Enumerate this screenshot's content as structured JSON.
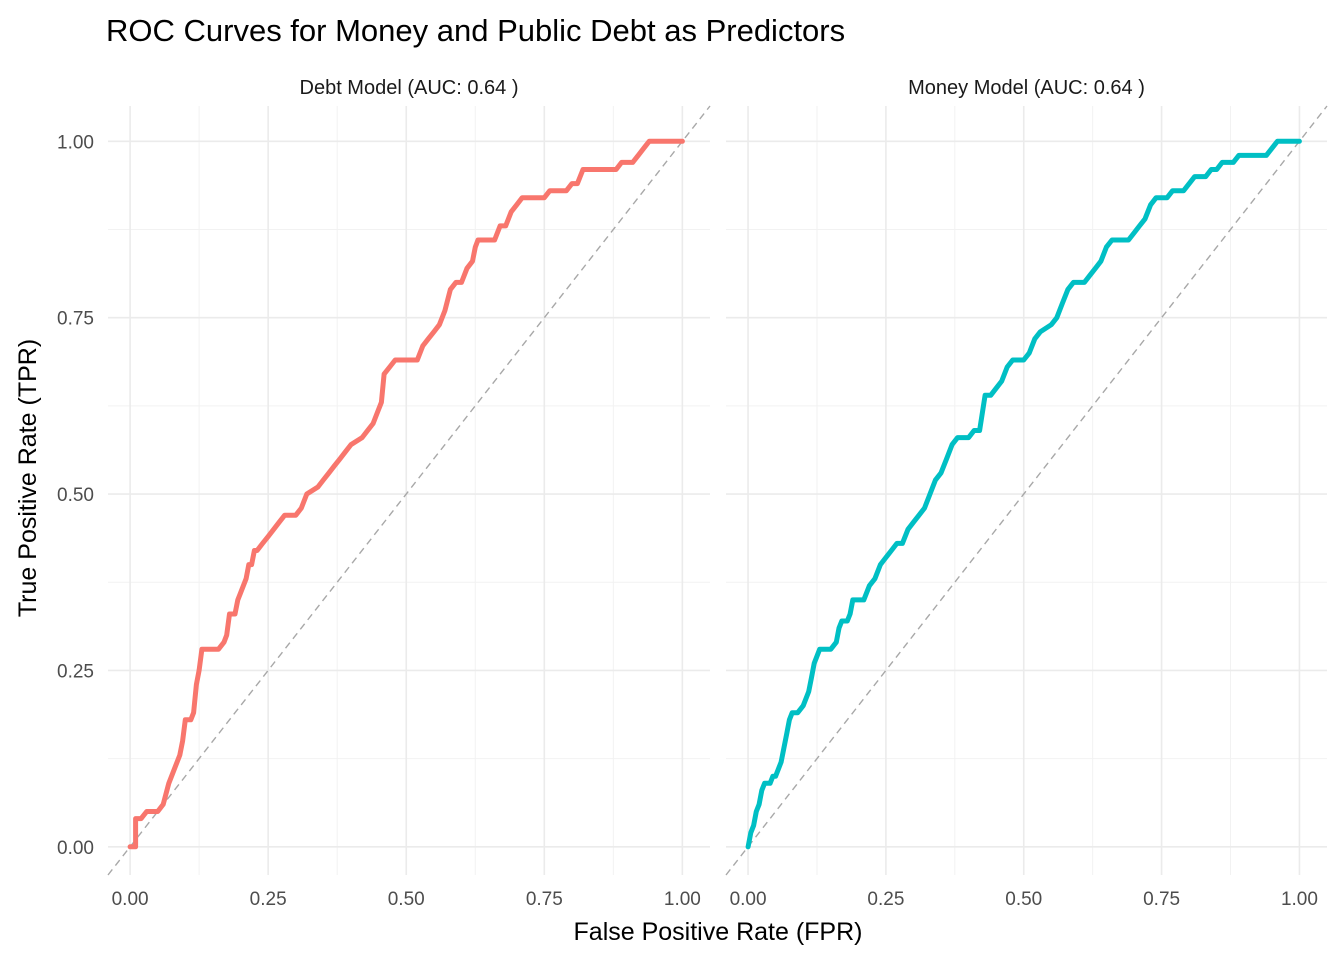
{
  "chart_data": {
    "type": "line",
    "title": "ROC Curves for Money and Public Debt as Predictors",
    "xlabel": "False Positive Rate (FPR)",
    "ylabel": "True Positive Rate (TPR)",
    "xlim": [
      -0.04,
      1.05
    ],
    "ylim": [
      -0.04,
      1.05
    ],
    "grid": true,
    "x_ticks": [
      "0.00",
      "0.25",
      "0.50",
      "0.75",
      "1.00"
    ],
    "y_ticks": [
      "0.00",
      "0.25",
      "0.50",
      "0.75",
      "1.00"
    ],
    "reference_line": "diagonal y = x (dashed)",
    "panels": [
      {
        "label": "Debt Model (AUC: 0.64 )",
        "color": "#f8766d",
        "points": [
          [
            0.0,
            0.0
          ],
          [
            0.01,
            0.0
          ],
          [
            0.01,
            0.04
          ],
          [
            0.02,
            0.04
          ],
          [
            0.03,
            0.05
          ],
          [
            0.05,
            0.05
          ],
          [
            0.06,
            0.06
          ],
          [
            0.07,
            0.09
          ],
          [
            0.08,
            0.11
          ],
          [
            0.09,
            0.13
          ],
          [
            0.095,
            0.15
          ],
          [
            0.1,
            0.18
          ],
          [
            0.11,
            0.18
          ],
          [
            0.115,
            0.19
          ],
          [
            0.12,
            0.23
          ],
          [
            0.125,
            0.25
          ],
          [
            0.13,
            0.28
          ],
          [
            0.16,
            0.28
          ],
          [
            0.17,
            0.29
          ],
          [
            0.175,
            0.3
          ],
          [
            0.18,
            0.33
          ],
          [
            0.19,
            0.33
          ],
          [
            0.195,
            0.35
          ],
          [
            0.2,
            0.36
          ],
          [
            0.21,
            0.38
          ],
          [
            0.215,
            0.4
          ],
          [
            0.22,
            0.4
          ],
          [
            0.225,
            0.42
          ],
          [
            0.23,
            0.42
          ],
          [
            0.24,
            0.43
          ],
          [
            0.25,
            0.44
          ],
          [
            0.26,
            0.45
          ],
          [
            0.27,
            0.46
          ],
          [
            0.28,
            0.47
          ],
          [
            0.3,
            0.47
          ],
          [
            0.31,
            0.48
          ],
          [
            0.32,
            0.5
          ],
          [
            0.34,
            0.51
          ],
          [
            0.35,
            0.52
          ],
          [
            0.36,
            0.53
          ],
          [
            0.37,
            0.54
          ],
          [
            0.38,
            0.55
          ],
          [
            0.39,
            0.56
          ],
          [
            0.4,
            0.57
          ],
          [
            0.42,
            0.58
          ],
          [
            0.43,
            0.59
          ],
          [
            0.44,
            0.6
          ],
          [
            0.45,
            0.62
          ],
          [
            0.455,
            0.63
          ],
          [
            0.46,
            0.67
          ],
          [
            0.47,
            0.68
          ],
          [
            0.48,
            0.69
          ],
          [
            0.52,
            0.69
          ],
          [
            0.53,
            0.71
          ],
          [
            0.54,
            0.72
          ],
          [
            0.55,
            0.73
          ],
          [
            0.56,
            0.74
          ],
          [
            0.57,
            0.76
          ],
          [
            0.58,
            0.79
          ],
          [
            0.59,
            0.8
          ],
          [
            0.6,
            0.8
          ],
          [
            0.61,
            0.82
          ],
          [
            0.62,
            0.83
          ],
          [
            0.625,
            0.85
          ],
          [
            0.63,
            0.86
          ],
          [
            0.66,
            0.86
          ],
          [
            0.67,
            0.88
          ],
          [
            0.68,
            0.88
          ],
          [
            0.69,
            0.9
          ],
          [
            0.7,
            0.91
          ],
          [
            0.71,
            0.92
          ],
          [
            0.75,
            0.92
          ],
          [
            0.76,
            0.93
          ],
          [
            0.79,
            0.93
          ],
          [
            0.8,
            0.94
          ],
          [
            0.81,
            0.94
          ],
          [
            0.82,
            0.96
          ],
          [
            0.88,
            0.96
          ],
          [
            0.89,
            0.97
          ],
          [
            0.91,
            0.97
          ],
          [
            0.92,
            0.98
          ],
          [
            0.93,
            0.99
          ],
          [
            0.94,
            1.0
          ],
          [
            1.0,
            1.0
          ]
        ]
      },
      {
        "label": "Money Model (AUC: 0.64 )",
        "color": "#00bfc4",
        "points": [
          [
            0.0,
            0.0
          ],
          [
            0.005,
            0.02
          ],
          [
            0.01,
            0.03
          ],
          [
            0.015,
            0.05
          ],
          [
            0.02,
            0.06
          ],
          [
            0.025,
            0.08
          ],
          [
            0.03,
            0.09
          ],
          [
            0.04,
            0.09
          ],
          [
            0.045,
            0.1
          ],
          [
            0.05,
            0.1
          ],
          [
            0.06,
            0.12
          ],
          [
            0.065,
            0.14
          ],
          [
            0.07,
            0.16
          ],
          [
            0.075,
            0.18
          ],
          [
            0.08,
            0.19
          ],
          [
            0.09,
            0.19
          ],
          [
            0.1,
            0.2
          ],
          [
            0.11,
            0.22
          ],
          [
            0.115,
            0.24
          ],
          [
            0.12,
            0.26
          ],
          [
            0.13,
            0.28
          ],
          [
            0.15,
            0.28
          ],
          [
            0.16,
            0.29
          ],
          [
            0.165,
            0.31
          ],
          [
            0.17,
            0.32
          ],
          [
            0.18,
            0.32
          ],
          [
            0.185,
            0.33
          ],
          [
            0.19,
            0.35
          ],
          [
            0.21,
            0.35
          ],
          [
            0.22,
            0.37
          ],
          [
            0.23,
            0.38
          ],
          [
            0.24,
            0.4
          ],
          [
            0.25,
            0.41
          ],
          [
            0.26,
            0.42
          ],
          [
            0.27,
            0.43
          ],
          [
            0.28,
            0.43
          ],
          [
            0.29,
            0.45
          ],
          [
            0.3,
            0.46
          ],
          [
            0.31,
            0.47
          ],
          [
            0.32,
            0.48
          ],
          [
            0.33,
            0.5
          ],
          [
            0.34,
            0.52
          ],
          [
            0.35,
            0.53
          ],
          [
            0.36,
            0.55
          ],
          [
            0.37,
            0.57
          ],
          [
            0.38,
            0.58
          ],
          [
            0.4,
            0.58
          ],
          [
            0.41,
            0.59
          ],
          [
            0.42,
            0.59
          ],
          [
            0.43,
            0.64
          ],
          [
            0.44,
            0.64
          ],
          [
            0.45,
            0.65
          ],
          [
            0.46,
            0.66
          ],
          [
            0.47,
            0.68
          ],
          [
            0.48,
            0.69
          ],
          [
            0.5,
            0.69
          ],
          [
            0.51,
            0.7
          ],
          [
            0.52,
            0.72
          ],
          [
            0.53,
            0.73
          ],
          [
            0.55,
            0.74
          ],
          [
            0.56,
            0.75
          ],
          [
            0.57,
            0.77
          ],
          [
            0.58,
            0.79
          ],
          [
            0.59,
            0.8
          ],
          [
            0.61,
            0.8
          ],
          [
            0.62,
            0.81
          ],
          [
            0.63,
            0.82
          ],
          [
            0.64,
            0.83
          ],
          [
            0.65,
            0.85
          ],
          [
            0.66,
            0.86
          ],
          [
            0.69,
            0.86
          ],
          [
            0.7,
            0.87
          ],
          [
            0.71,
            0.88
          ],
          [
            0.72,
            0.89
          ],
          [
            0.73,
            0.91
          ],
          [
            0.74,
            0.92
          ],
          [
            0.76,
            0.92
          ],
          [
            0.77,
            0.93
          ],
          [
            0.79,
            0.93
          ],
          [
            0.8,
            0.94
          ],
          [
            0.81,
            0.95
          ],
          [
            0.83,
            0.95
          ],
          [
            0.84,
            0.96
          ],
          [
            0.85,
            0.96
          ],
          [
            0.86,
            0.97
          ],
          [
            0.88,
            0.97
          ],
          [
            0.89,
            0.98
          ],
          [
            0.94,
            0.98
          ],
          [
            0.95,
            0.99
          ],
          [
            0.96,
            1.0
          ],
          [
            1.0,
            1.0
          ]
        ]
      }
    ]
  }
}
